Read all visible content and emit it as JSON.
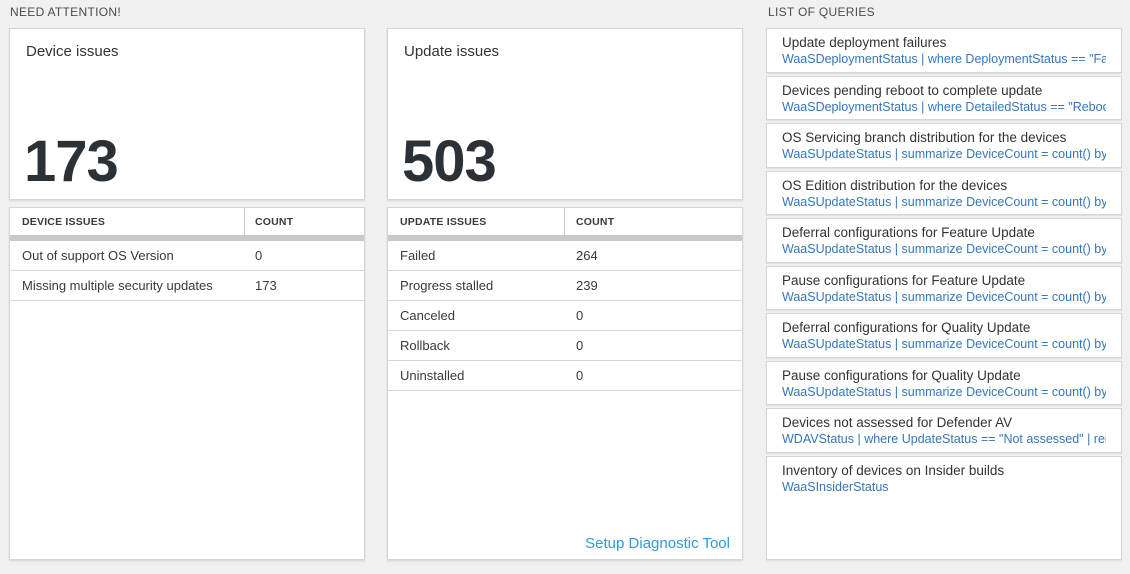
{
  "need_attention": {
    "header": "NEED ATTENTION!",
    "tiles": [
      {
        "title": "Device issues",
        "big_number": "173",
        "table": {
          "col_issues": "DEVICE ISSUES",
          "col_count": "COUNT",
          "rows": [
            {
              "label": "Out of support OS Version",
              "count": "0"
            },
            {
              "label": "Missing multiple security updates",
              "count": "173"
            }
          ]
        }
      },
      {
        "title": "Update issues",
        "big_number": "503",
        "table": {
          "col_issues": "UPDATE ISSUES",
          "col_count": "COUNT",
          "rows": [
            {
              "label": "Failed",
              "count": "264"
            },
            {
              "label": "Progress stalled",
              "count": "239"
            },
            {
              "label": "Canceled",
              "count": "0"
            },
            {
              "label": "Rollback",
              "count": "0"
            },
            {
              "label": "Uninstalled",
              "count": "0"
            }
          ]
        },
        "footer_link": "Setup Diagnostic Tool"
      }
    ]
  },
  "queries": {
    "header": "LIST OF QUERIES",
    "items": [
      {
        "title": "Update deployment failures",
        "query": "WaaSDeploymentStatus | where DeploymentStatus == \"Failed\" |..."
      },
      {
        "title": "Devices pending reboot to complete update",
        "query": "WaaSDeploymentStatus | where DetailedStatus == \"Reboot pend..."
      },
      {
        "title": "OS Servicing branch distribution for the devices",
        "query": "WaaSUpdateStatus | summarize DeviceCount = count() by OSSer..."
      },
      {
        "title": "OS Edition distribution for the devices",
        "query": "WaaSUpdateStatus | summarize DeviceCount = count() by OSEdit..."
      },
      {
        "title": "Deferral configurations for Feature Update",
        "query": "WaaSUpdateStatus | summarize DeviceCount = count() by Featur..."
      },
      {
        "title": "Pause configurations for Feature Update",
        "query": "WaaSUpdateStatus | summarize DeviceCount = count() by Featur..."
      },
      {
        "title": "Deferral configurations for Quality Update",
        "query": "WaaSUpdateStatus | summarize DeviceCount = count() by Qualit..."
      },
      {
        "title": "Pause configurations for Quality Update",
        "query": "WaaSUpdateStatus | summarize DeviceCount = count() by Qualit..."
      },
      {
        "title": "Devices not assessed for Defender AV",
        "query": "WDAVStatus | where UpdateStatus == \"Not assessed\" | render ta..."
      },
      {
        "title": "Inventory of devices on Insider builds",
        "query": "WaaSInsiderStatus"
      }
    ]
  },
  "colors": {
    "page_bg": "#f1f1f1",
    "query_link_blue": "#3577bb",
    "footer_link_blue": "#2e9bd6",
    "big_number_dark": "#2c3137",
    "grid_bar_gray": "#c9c9c9"
  }
}
